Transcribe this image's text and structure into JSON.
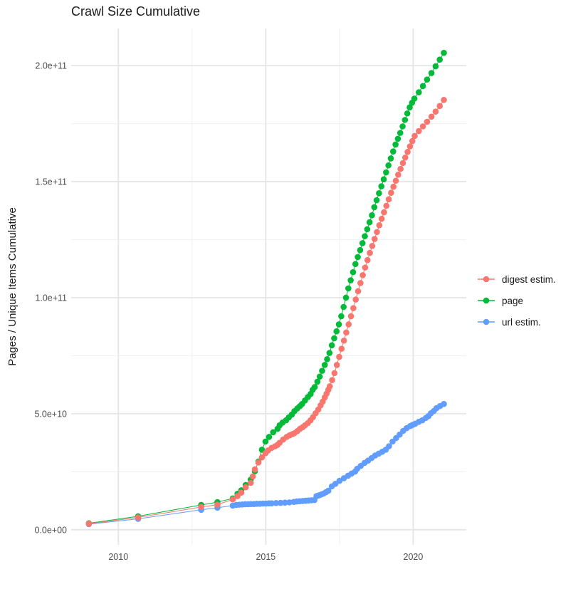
{
  "chart_data": {
    "type": "line",
    "title": "Crawl Size Cumulative",
    "xlabel": "",
    "ylabel": "Pages / Unique Items Cumulative",
    "legend_position": "right",
    "grid": true,
    "value_unit": "each value unit = 1e10 pages/items",
    "x_range": [
      2008.4,
      2021.8
    ],
    "y_range_e10": [
      -0.65,
      21.6
    ],
    "x_ticks": {
      "major": [
        2010,
        2015,
        2020
      ],
      "labels": [
        "2010",
        "2015",
        "2020"
      ],
      "minor": [
        2012.5,
        2017.5
      ]
    },
    "y_ticks": {
      "major_e10": [
        0,
        5,
        10,
        15,
        20
      ],
      "labels": [
        "0.0e+00",
        "5.0e+10",
        "1.0e+11",
        "1.5e+11",
        "2.0e+11"
      ],
      "minor_e10": [
        2.5,
        7.5,
        12.5,
        17.5
      ]
    },
    "series": [
      {
        "name": "digest estim.",
        "color": "#F8766D",
        "points": [
          [
            2009.0,
            0.26
          ],
          [
            2010.67,
            0.53
          ],
          [
            2012.81,
            0.98
          ],
          [
            2013.36,
            1.08
          ],
          [
            2013.88,
            1.31
          ],
          [
            2014.04,
            1.45
          ],
          [
            2014.17,
            1.6
          ],
          [
            2014.32,
            1.83
          ],
          [
            2014.49,
            2.02
          ],
          [
            2014.56,
            2.3
          ],
          [
            2014.63,
            2.6
          ],
          [
            2014.75,
            2.9
          ],
          [
            2014.87,
            3.12
          ],
          [
            2014.99,
            3.3
          ],
          [
            2015.08,
            3.42
          ],
          [
            2015.2,
            3.53
          ],
          [
            2015.32,
            3.6
          ],
          [
            2015.4,
            3.66
          ],
          [
            2015.47,
            3.75
          ],
          [
            2015.59,
            3.89
          ],
          [
            2015.71,
            4.0
          ],
          [
            2015.81,
            4.07
          ],
          [
            2015.9,
            4.12
          ],
          [
            2015.97,
            4.16
          ],
          [
            2016.07,
            4.25
          ],
          [
            2016.16,
            4.35
          ],
          [
            2016.25,
            4.42
          ],
          [
            2016.33,
            4.5
          ],
          [
            2016.43,
            4.6
          ],
          [
            2016.52,
            4.72
          ],
          [
            2016.6,
            4.85
          ],
          [
            2016.69,
            5.02
          ],
          [
            2016.78,
            5.18
          ],
          [
            2016.86,
            5.36
          ],
          [
            2016.93,
            5.52
          ],
          [
            2017.0,
            5.7
          ],
          [
            2017.06,
            5.86
          ],
          [
            2017.12,
            6.03
          ],
          [
            2017.17,
            6.18
          ],
          [
            2017.25,
            6.45
          ],
          [
            2017.33,
            6.75
          ],
          [
            2017.41,
            7.1
          ],
          [
            2017.49,
            7.45
          ],
          [
            2017.57,
            7.8
          ],
          [
            2017.65,
            8.15
          ],
          [
            2017.73,
            8.5
          ],
          [
            2017.81,
            8.85
          ],
          [
            2017.89,
            9.2
          ],
          [
            2017.97,
            9.55
          ],
          [
            2018.05,
            9.92
          ],
          [
            2018.13,
            10.28
          ],
          [
            2018.21,
            10.63
          ],
          [
            2018.29,
            10.97
          ],
          [
            2018.37,
            11.3
          ],
          [
            2018.45,
            11.62
          ],
          [
            2018.53,
            11.93
          ],
          [
            2018.61,
            12.23
          ],
          [
            2018.69,
            12.53
          ],
          [
            2018.77,
            12.83
          ],
          [
            2018.85,
            13.12
          ],
          [
            2018.93,
            13.4
          ],
          [
            2019.01,
            13.68
          ],
          [
            2019.09,
            13.96
          ],
          [
            2019.17,
            14.24
          ],
          [
            2019.25,
            14.52
          ],
          [
            2019.33,
            14.78
          ],
          [
            2019.41,
            15.04
          ],
          [
            2019.49,
            15.3
          ],
          [
            2019.57,
            15.55
          ],
          [
            2019.65,
            15.8
          ],
          [
            2019.73,
            16.04
          ],
          [
            2019.81,
            16.28
          ],
          [
            2019.89,
            16.52
          ],
          [
            2019.97,
            16.75
          ],
          [
            2020.05,
            16.97
          ],
          [
            2020.19,
            17.18
          ],
          [
            2020.33,
            17.38
          ],
          [
            2020.47,
            17.58
          ],
          [
            2020.62,
            17.8
          ],
          [
            2020.76,
            18.02
          ],
          [
            2020.9,
            18.26
          ],
          [
            2021.04,
            18.52
          ]
        ]
      },
      {
        "name": "page",
        "color": "#00BA38",
        "points": [
          [
            2009.0,
            0.28
          ],
          [
            2010.67,
            0.58
          ],
          [
            2012.81,
            1.07
          ],
          [
            2013.36,
            1.19
          ],
          [
            2013.88,
            1.35
          ],
          [
            2014.04,
            1.55
          ],
          [
            2014.17,
            1.7
          ],
          [
            2014.32,
            1.93
          ],
          [
            2014.49,
            2.16
          ],
          [
            2014.63,
            2.52
          ],
          [
            2014.75,
            2.94
          ],
          [
            2014.87,
            3.45
          ],
          [
            2014.99,
            3.8
          ],
          [
            2015.11,
            4.0
          ],
          [
            2015.25,
            4.2
          ],
          [
            2015.4,
            4.35
          ],
          [
            2015.47,
            4.5
          ],
          [
            2015.57,
            4.62
          ],
          [
            2015.69,
            4.72
          ],
          [
            2015.78,
            4.84
          ],
          [
            2015.88,
            4.96
          ],
          [
            2015.97,
            5.11
          ],
          [
            2016.07,
            5.23
          ],
          [
            2016.16,
            5.33
          ],
          [
            2016.23,
            5.42
          ],
          [
            2016.33,
            5.57
          ],
          [
            2016.43,
            5.72
          ],
          [
            2016.52,
            5.85
          ],
          [
            2016.59,
            6.03
          ],
          [
            2016.66,
            6.15
          ],
          [
            2016.75,
            6.38
          ],
          [
            2016.83,
            6.6
          ],
          [
            2016.91,
            6.85
          ],
          [
            2017.0,
            7.1
          ],
          [
            2017.08,
            7.35
          ],
          [
            2017.16,
            7.62
          ],
          [
            2017.24,
            7.95
          ],
          [
            2017.32,
            8.25
          ],
          [
            2017.4,
            8.55
          ],
          [
            2017.48,
            8.85
          ],
          [
            2017.56,
            9.2
          ],
          [
            2017.64,
            9.6
          ],
          [
            2017.72,
            10.0
          ],
          [
            2017.8,
            10.4
          ],
          [
            2017.88,
            10.75
          ],
          [
            2017.96,
            11.1
          ],
          [
            2018.04,
            11.45
          ],
          [
            2018.12,
            11.75
          ],
          [
            2018.2,
            12.05
          ],
          [
            2018.28,
            12.35
          ],
          [
            2018.36,
            12.65
          ],
          [
            2018.44,
            12.95
          ],
          [
            2018.52,
            13.25
          ],
          [
            2018.6,
            13.55
          ],
          [
            2018.68,
            13.9
          ],
          [
            2018.76,
            14.2
          ],
          [
            2018.84,
            14.5
          ],
          [
            2018.92,
            14.8
          ],
          [
            2019.0,
            15.1
          ],
          [
            2019.08,
            15.4
          ],
          [
            2019.16,
            15.7
          ],
          [
            2019.24,
            16.0
          ],
          [
            2019.32,
            16.3
          ],
          [
            2019.4,
            16.6
          ],
          [
            2019.48,
            16.85
          ],
          [
            2019.56,
            17.1
          ],
          [
            2019.64,
            17.38
          ],
          [
            2019.72,
            17.66
          ],
          [
            2019.8,
            17.94
          ],
          [
            2019.88,
            18.2
          ],
          [
            2019.96,
            18.4
          ],
          [
            2020.04,
            18.58
          ],
          [
            2020.19,
            18.85
          ],
          [
            2020.33,
            19.12
          ],
          [
            2020.47,
            19.4
          ],
          [
            2020.62,
            19.68
          ],
          [
            2020.76,
            19.97
          ],
          [
            2020.9,
            20.26
          ],
          [
            2021.04,
            20.55
          ]
        ]
      },
      {
        "name": "url estim.",
        "color": "#619CFF",
        "points": [
          [
            2009.0,
            0.24
          ],
          [
            2010.67,
            0.47
          ],
          [
            2012.81,
            0.86
          ],
          [
            2013.36,
            0.95
          ],
          [
            2013.88,
            1.04
          ],
          [
            2014.0,
            1.07
          ],
          [
            2014.1,
            1.08
          ],
          [
            2014.2,
            1.09
          ],
          [
            2014.3,
            1.1
          ],
          [
            2014.4,
            1.1
          ],
          [
            2014.5,
            1.11
          ],
          [
            2014.6,
            1.11
          ],
          [
            2014.7,
            1.12
          ],
          [
            2014.8,
            1.12
          ],
          [
            2014.9,
            1.13
          ],
          [
            2015.0,
            1.13
          ],
          [
            2015.1,
            1.14
          ],
          [
            2015.2,
            1.14
          ],
          [
            2015.35,
            1.15
          ],
          [
            2015.5,
            1.16
          ],
          [
            2015.65,
            1.17
          ],
          [
            2015.8,
            1.18
          ],
          [
            2015.95,
            1.2
          ],
          [
            2016.05,
            1.22
          ],
          [
            2016.15,
            1.23
          ],
          [
            2016.25,
            1.24
          ],
          [
            2016.35,
            1.25
          ],
          [
            2016.45,
            1.26
          ],
          [
            2016.55,
            1.27
          ],
          [
            2016.65,
            1.28
          ],
          [
            2016.72,
            1.45
          ],
          [
            2016.8,
            1.48
          ],
          [
            2016.88,
            1.52
          ],
          [
            2016.96,
            1.56
          ],
          [
            2017.04,
            1.62
          ],
          [
            2017.12,
            1.68
          ],
          [
            2017.24,
            1.87
          ],
          [
            2017.36,
            1.98
          ],
          [
            2017.5,
            2.11
          ],
          [
            2017.65,
            2.22
          ],
          [
            2017.79,
            2.33
          ],
          [
            2017.91,
            2.42
          ],
          [
            2018.03,
            2.51
          ],
          [
            2018.1,
            2.63
          ],
          [
            2018.22,
            2.75
          ],
          [
            2018.35,
            2.88
          ],
          [
            2018.47,
            2.98
          ],
          [
            2018.59,
            3.09
          ],
          [
            2018.71,
            3.2
          ],
          [
            2018.83,
            3.28
          ],
          [
            2018.95,
            3.36
          ],
          [
            2019.07,
            3.45
          ],
          [
            2019.18,
            3.6
          ],
          [
            2019.3,
            3.8
          ],
          [
            2019.42,
            3.95
          ],
          [
            2019.54,
            4.1
          ],
          [
            2019.66,
            4.26
          ],
          [
            2019.78,
            4.38
          ],
          [
            2019.9,
            4.47
          ],
          [
            2019.98,
            4.52
          ],
          [
            2020.07,
            4.57
          ],
          [
            2020.19,
            4.65
          ],
          [
            2020.31,
            4.72
          ],
          [
            2020.43,
            4.82
          ],
          [
            2020.52,
            4.9
          ],
          [
            2020.6,
            5.02
          ],
          [
            2020.7,
            5.12
          ],
          [
            2020.79,
            5.24
          ],
          [
            2020.91,
            5.33
          ],
          [
            2021.04,
            5.42
          ]
        ]
      }
    ],
    "style": {
      "grid_major_color": "#E5E5E5",
      "grid_minor_color": "#F2F2F2",
      "tick_label_color": "#4D4D4D",
      "text_color": "#1a1a1a",
      "background": "#FFFFFF"
    }
  }
}
